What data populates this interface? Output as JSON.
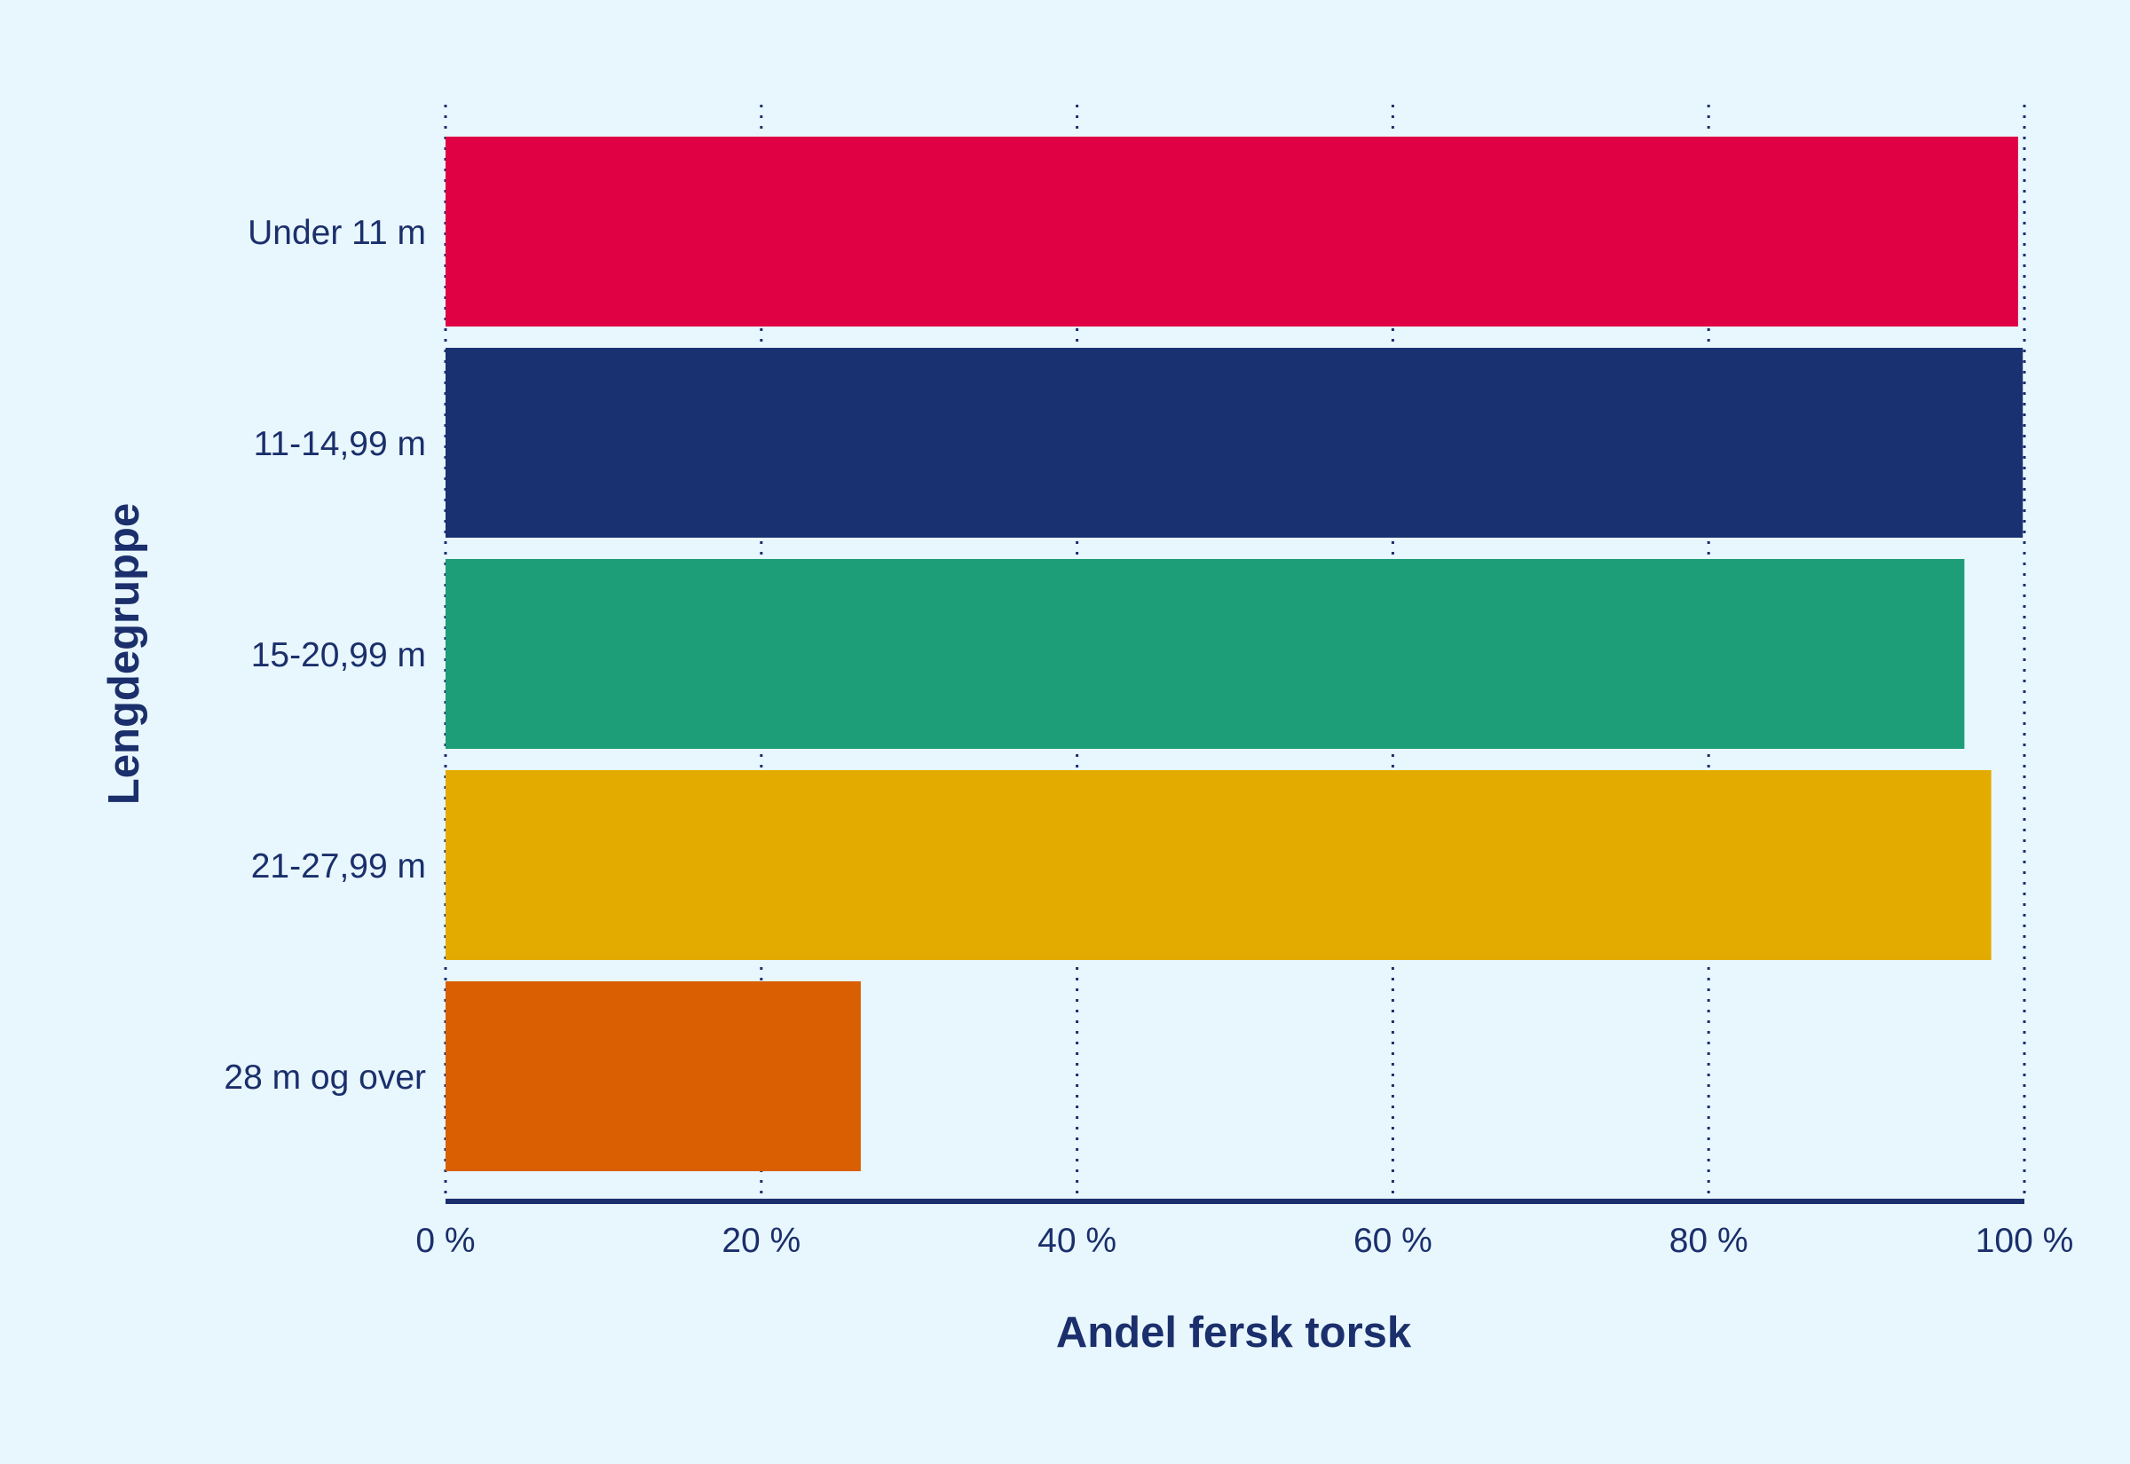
{
  "chart_data": {
    "type": "bar",
    "orientation": "horizontal",
    "categories": [
      "Under 11 m",
      "11-14,99 m",
      "15-20,99 m",
      "21-27,99 m",
      "28 m og over"
    ],
    "values": [
      99.6,
      99.9,
      96.2,
      97.9,
      26.3
    ],
    "bar_colors": [
      "#e00044",
      "#1a3171",
      "#1d9e78",
      "#e3ab00",
      "#d95f02"
    ],
    "xlabel": "Andel fersk torsk",
    "ylabel": "Lengdegruppe",
    "xlim": [
      0,
      100
    ],
    "x_ticks": [
      "0 %",
      "20 %",
      "40 %",
      "60 %",
      "80 %",
      "100 %"
    ],
    "grid": "vertical dotted",
    "legend": "none"
  },
  "colors": {
    "background": "#e8f6fd",
    "text": "#1a2f6b",
    "axis": "#1a2f6b",
    "grid": "#1a2f6b"
  }
}
